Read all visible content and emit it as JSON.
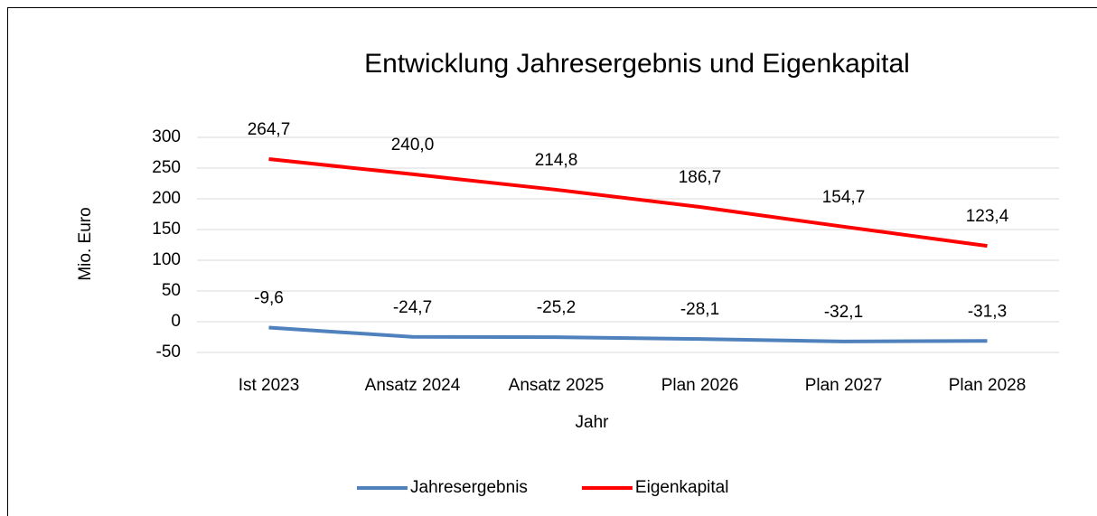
{
  "chart_data": {
    "type": "line",
    "title": "Entwicklung Jahresergebnis und Eigenkapital",
    "x_label": "Jahr",
    "y_label": "Mio. Euro",
    "categories": [
      "Ist 2023",
      "Ansatz 2024",
      "Ansatz 2025",
      "Plan 2026",
      "Plan 2027",
      "Plan 2028"
    ],
    "series": [
      {
        "name": "Jahresergebnis",
        "color": "#4f81bd",
        "values": [
          -9.6,
          -24.7,
          -25.2,
          -28.1,
          -32.1,
          -31.3
        ],
        "value_labels": [
          "-9,6",
          "-24,7",
          "-25,2",
          "-28,1",
          "-32,1",
          "-31,3"
        ]
      },
      {
        "name": "Eigenkapital",
        "color": "#ff0000",
        "values": [
          264.7,
          240.0,
          214.8,
          186.7,
          154.7,
          123.4
        ],
        "value_labels": [
          "264,7",
          "240,0",
          "214,8",
          "186,7",
          "154,7",
          "123,4"
        ]
      }
    ],
    "ylim": [
      -50,
      300
    ],
    "yticks": [
      -50,
      0,
      50,
      100,
      150,
      200,
      250,
      300
    ],
    "grid": true,
    "legend": "bottom"
  }
}
